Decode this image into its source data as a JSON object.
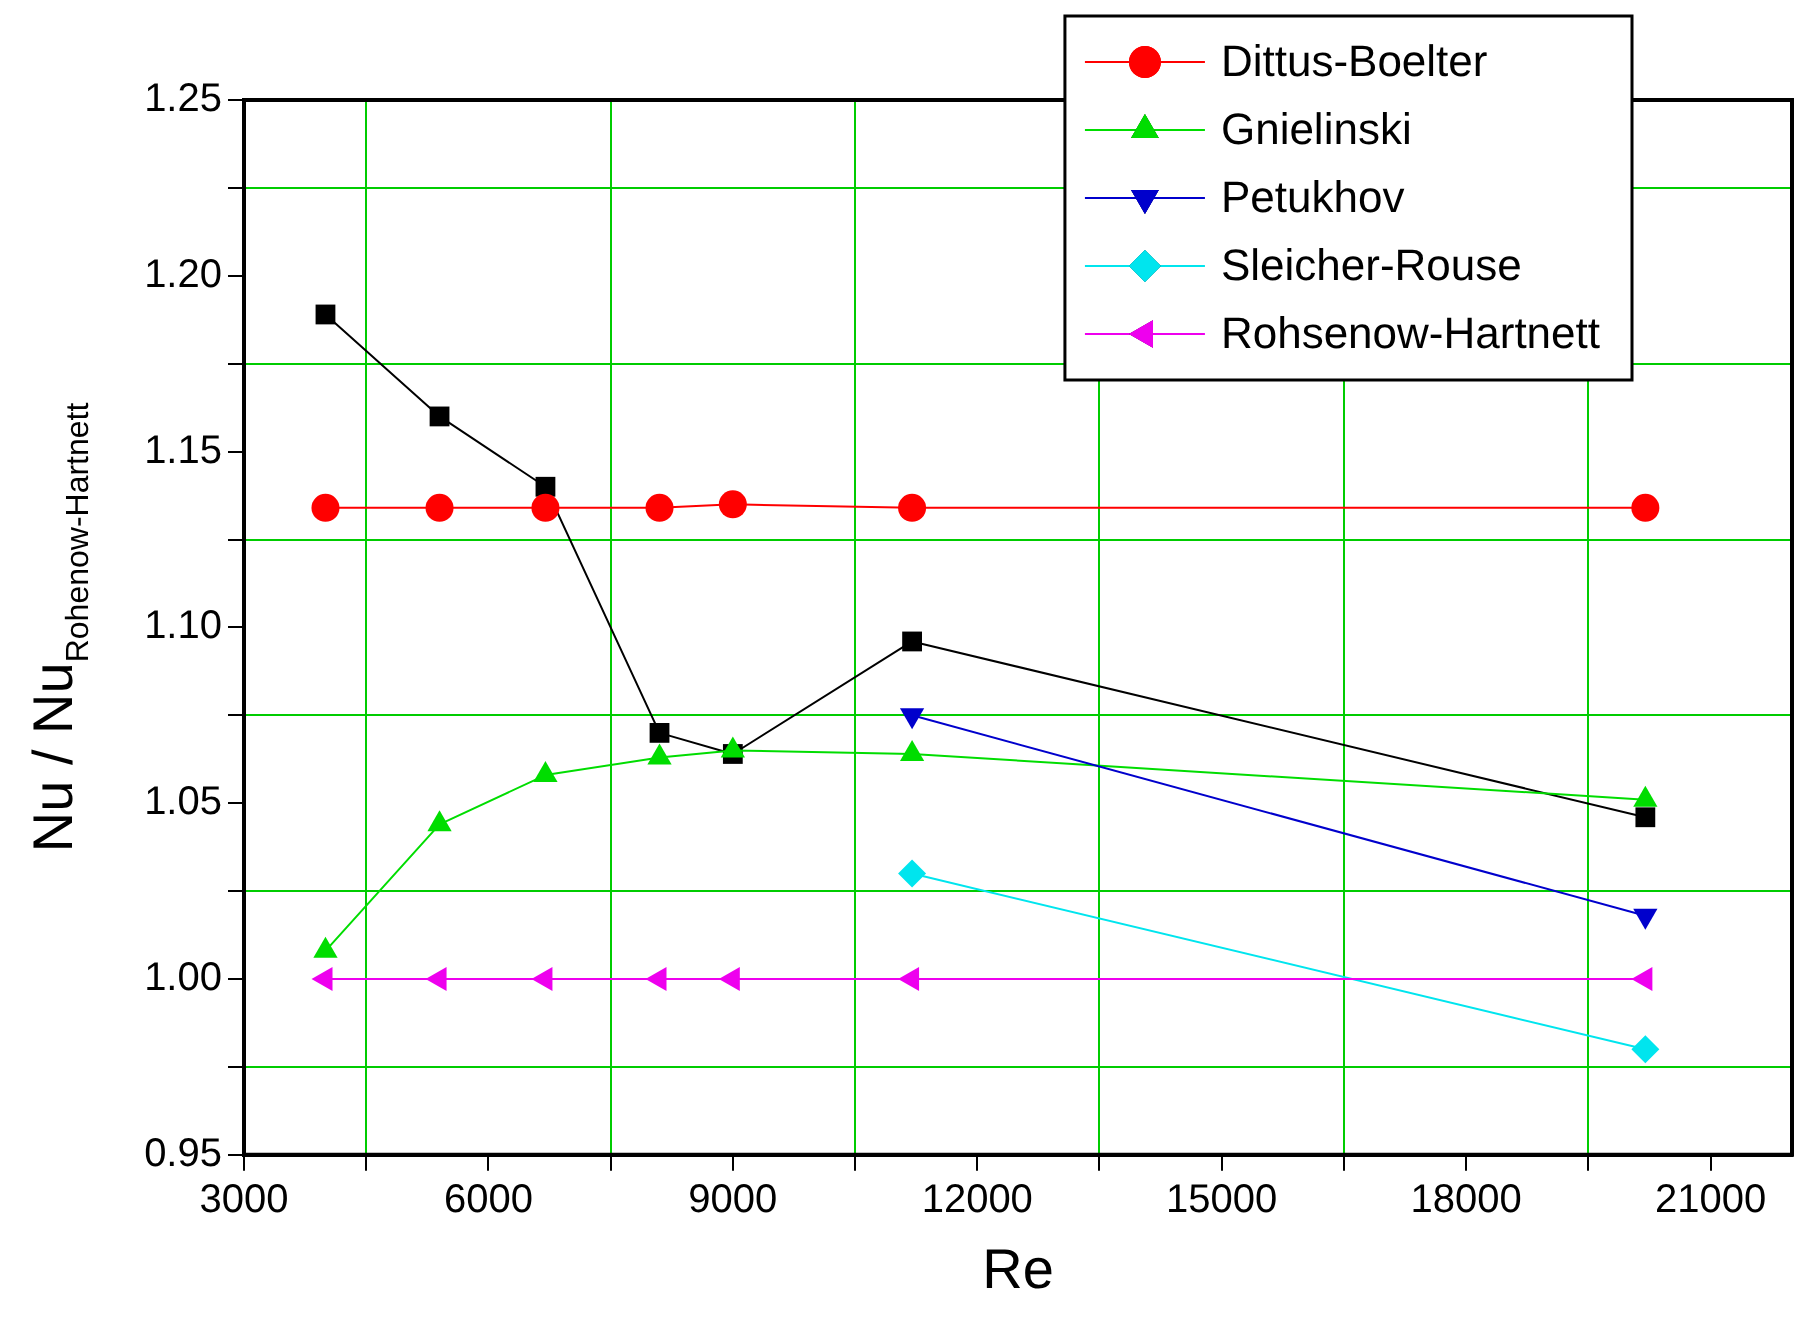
{
  "chart_data": {
    "type": "line",
    "xlabel": "Re",
    "ylabel": "Nu / Nu$_{Rohenow-Hartnett}$",
    "xlim": [
      3000,
      22000
    ],
    "xticks": [
      3000,
      {
        "value": 4500,
        "label": null
      },
      6000,
      {
        "value": 7500,
        "label": null
      },
      9000,
      {
        "value": 10500,
        "label": null
      },
      12000,
      {
        "value": 13500,
        "label": null
      },
      15000,
      {
        "value": 16500,
        "label": null
      },
      18000,
      {
        "value": 19500,
        "label": null
      },
      21000
    ],
    "ylim": [
      0.95,
      1.25
    ],
    "yticks": [
      0.95,
      {
        "value": 0.975,
        "label": null
      },
      {
        "value": 1,
        "label": "1.00"
      },
      {
        "value": 1.025,
        "label": null
      },
      1.05,
      {
        "value": 1.075,
        "label": null
      },
      {
        "value": 1.1,
        "label": "1.10"
      },
      {
        "value": 1.125,
        "label": null
      },
      1.15,
      {
        "value": 1.175,
        "label": null
      },
      {
        "value": 1.2,
        "label": "1.20"
      },
      {
        "value": 1.225,
        "label": null
      },
      1.25
    ],
    "grid": "minor",
    "legend": "top right",
    "line_style": "solid",
    "series": [
      {
        "color": "#000000",
        "marker": "square",
        "x": [
          4000,
          5400,
          6700,
          8100,
          9000,
          11200,
          20200
        ],
        "values": [
          1.189,
          1.16,
          1.14,
          1.07,
          1.064,
          1.096,
          1.046
        ]
      },
      {
        "name": "Dittus-Boelter",
        "color": "#ff0000",
        "marker": "circle",
        "x": [
          4000,
          5400,
          6700,
          8100,
          9000,
          11200,
          20200
        ],
        "values": [
          1.134,
          1.134,
          1.134,
          1.134,
          1.135,
          1.134,
          1.134
        ]
      },
      {
        "name": "Gnielinski",
        "color": "#00dd00",
        "marker": "triangle",
        "x": [
          4000,
          5400,
          6700,
          8100,
          9000,
          11200,
          20200
        ],
        "values": [
          1.008,
          1.044,
          1.058,
          1.063,
          1.065,
          1.064,
          1.051
        ]
      },
      {
        "name": "Petukhov",
        "color": "#0000cc",
        "marker": "triangle-down",
        "x": [
          11200,
          20200
        ],
        "values": [
          1.075,
          1.018
        ]
      },
      {
        "name": "Sleicher-Rouse",
        "color": "#00e5ee",
        "marker": "diamond",
        "x": [
          11200,
          20200
        ],
        "values": [
          1.03,
          0.98
        ]
      },
      {
        "name": "Rohsenow-Hartnett",
        "color": "#ee00ee",
        "marker": "triangle-left",
        "x": [
          4000,
          5400,
          6700,
          8100,
          9000,
          11200,
          20200
        ],
        "values": [
          1.0,
          1.0,
          1.0,
          1.0,
          1.0,
          1.0,
          1.0
        ]
      }
    ]
  }
}
